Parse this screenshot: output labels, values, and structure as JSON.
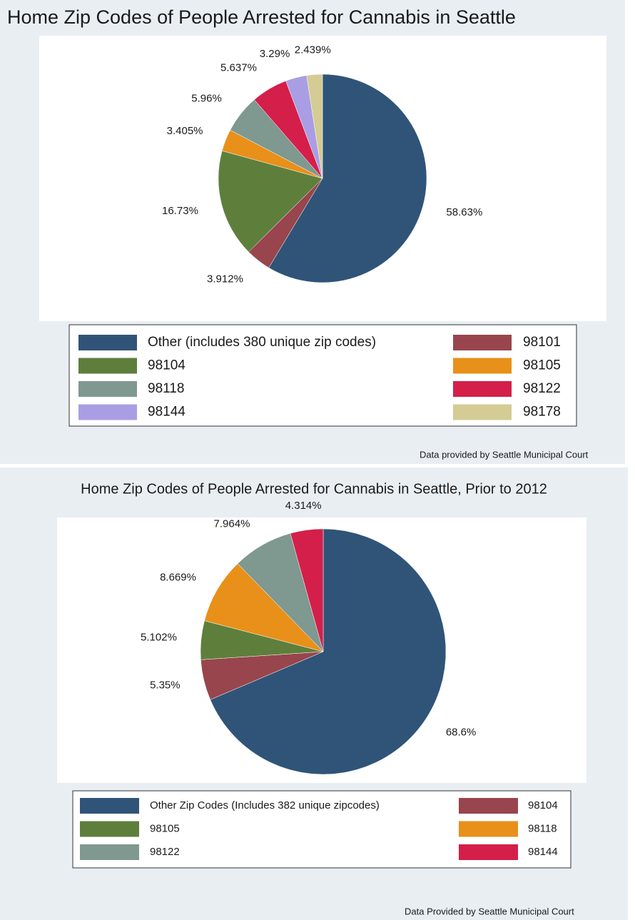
{
  "chart_data": [
    {
      "type": "pie",
      "title": "Home Zip Codes of People Arrested for Cannabis in Seattle",
      "categories": [
        "Other (includes 380 unique zip codes)",
        "98101",
        "98104",
        "98105",
        "98118",
        "98122",
        "98144",
        "98178"
      ],
      "values": [
        58.63,
        3.912,
        16.73,
        3.405,
        5.96,
        5.637,
        3.29,
        2.439
      ],
      "value_labels": [
        "58.63%",
        "3.912%",
        "16.73%",
        "3.405%",
        "5.96%",
        "5.637%",
        "3.29%",
        "2.439%"
      ],
      "colors": [
        "#2f5478",
        "#98454d",
        "#5e7f3c",
        "#e8901a",
        "#7f9890",
        "#d41f4a",
        "#a99ee3",
        "#d4cc94"
      ],
      "footnote": "Data provided by Seattle Municipal Court"
    },
    {
      "type": "pie",
      "title": "Home Zip Codes of People Arrested for Cannabis in Seattle, Prior to 2012",
      "categories": [
        "Other Zip Codes (Includes 382 unique zipcodes)",
        "98104",
        "98105",
        "98118",
        "98122",
        "98144"
      ],
      "values": [
        68.6,
        5.35,
        5.102,
        8.669,
        7.964,
        4.314
      ],
      "value_labels": [
        "68.6%",
        "5.35%",
        "5.102%",
        "8.669%",
        "7.964%",
        "4.314%"
      ],
      "colors": [
        "#2f5478",
        "#98454d",
        "#5e7f3c",
        "#e8901a",
        "#7f9890",
        "#d41f4a"
      ],
      "footnote": "Data Provided by Seattle Municipal Court"
    }
  ]
}
